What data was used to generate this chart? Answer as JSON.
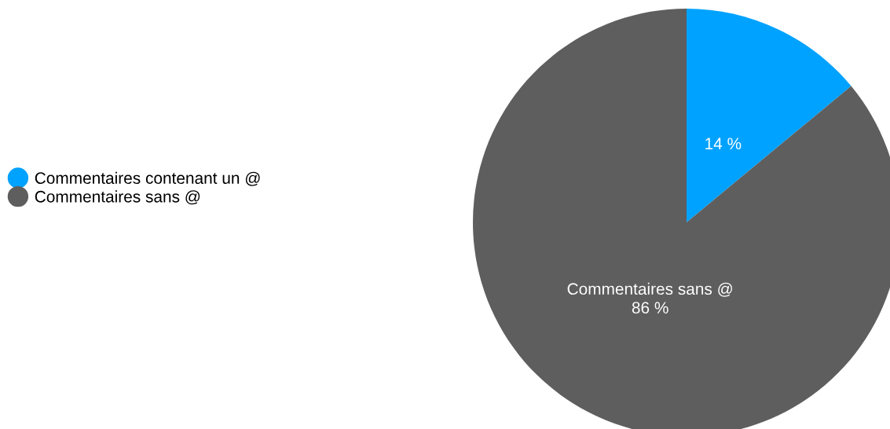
{
  "chart_data": {
    "type": "pie",
    "categories": [
      "Commentaires contenant un @",
      "Commentaires sans @"
    ],
    "values": [
      14,
      86
    ],
    "colors": [
      "#00a2ff",
      "#5e5e5e"
    ],
    "value_labels": [
      "14 %",
      "Commentaires sans @\n86 %"
    ],
    "legend": "left"
  }
}
